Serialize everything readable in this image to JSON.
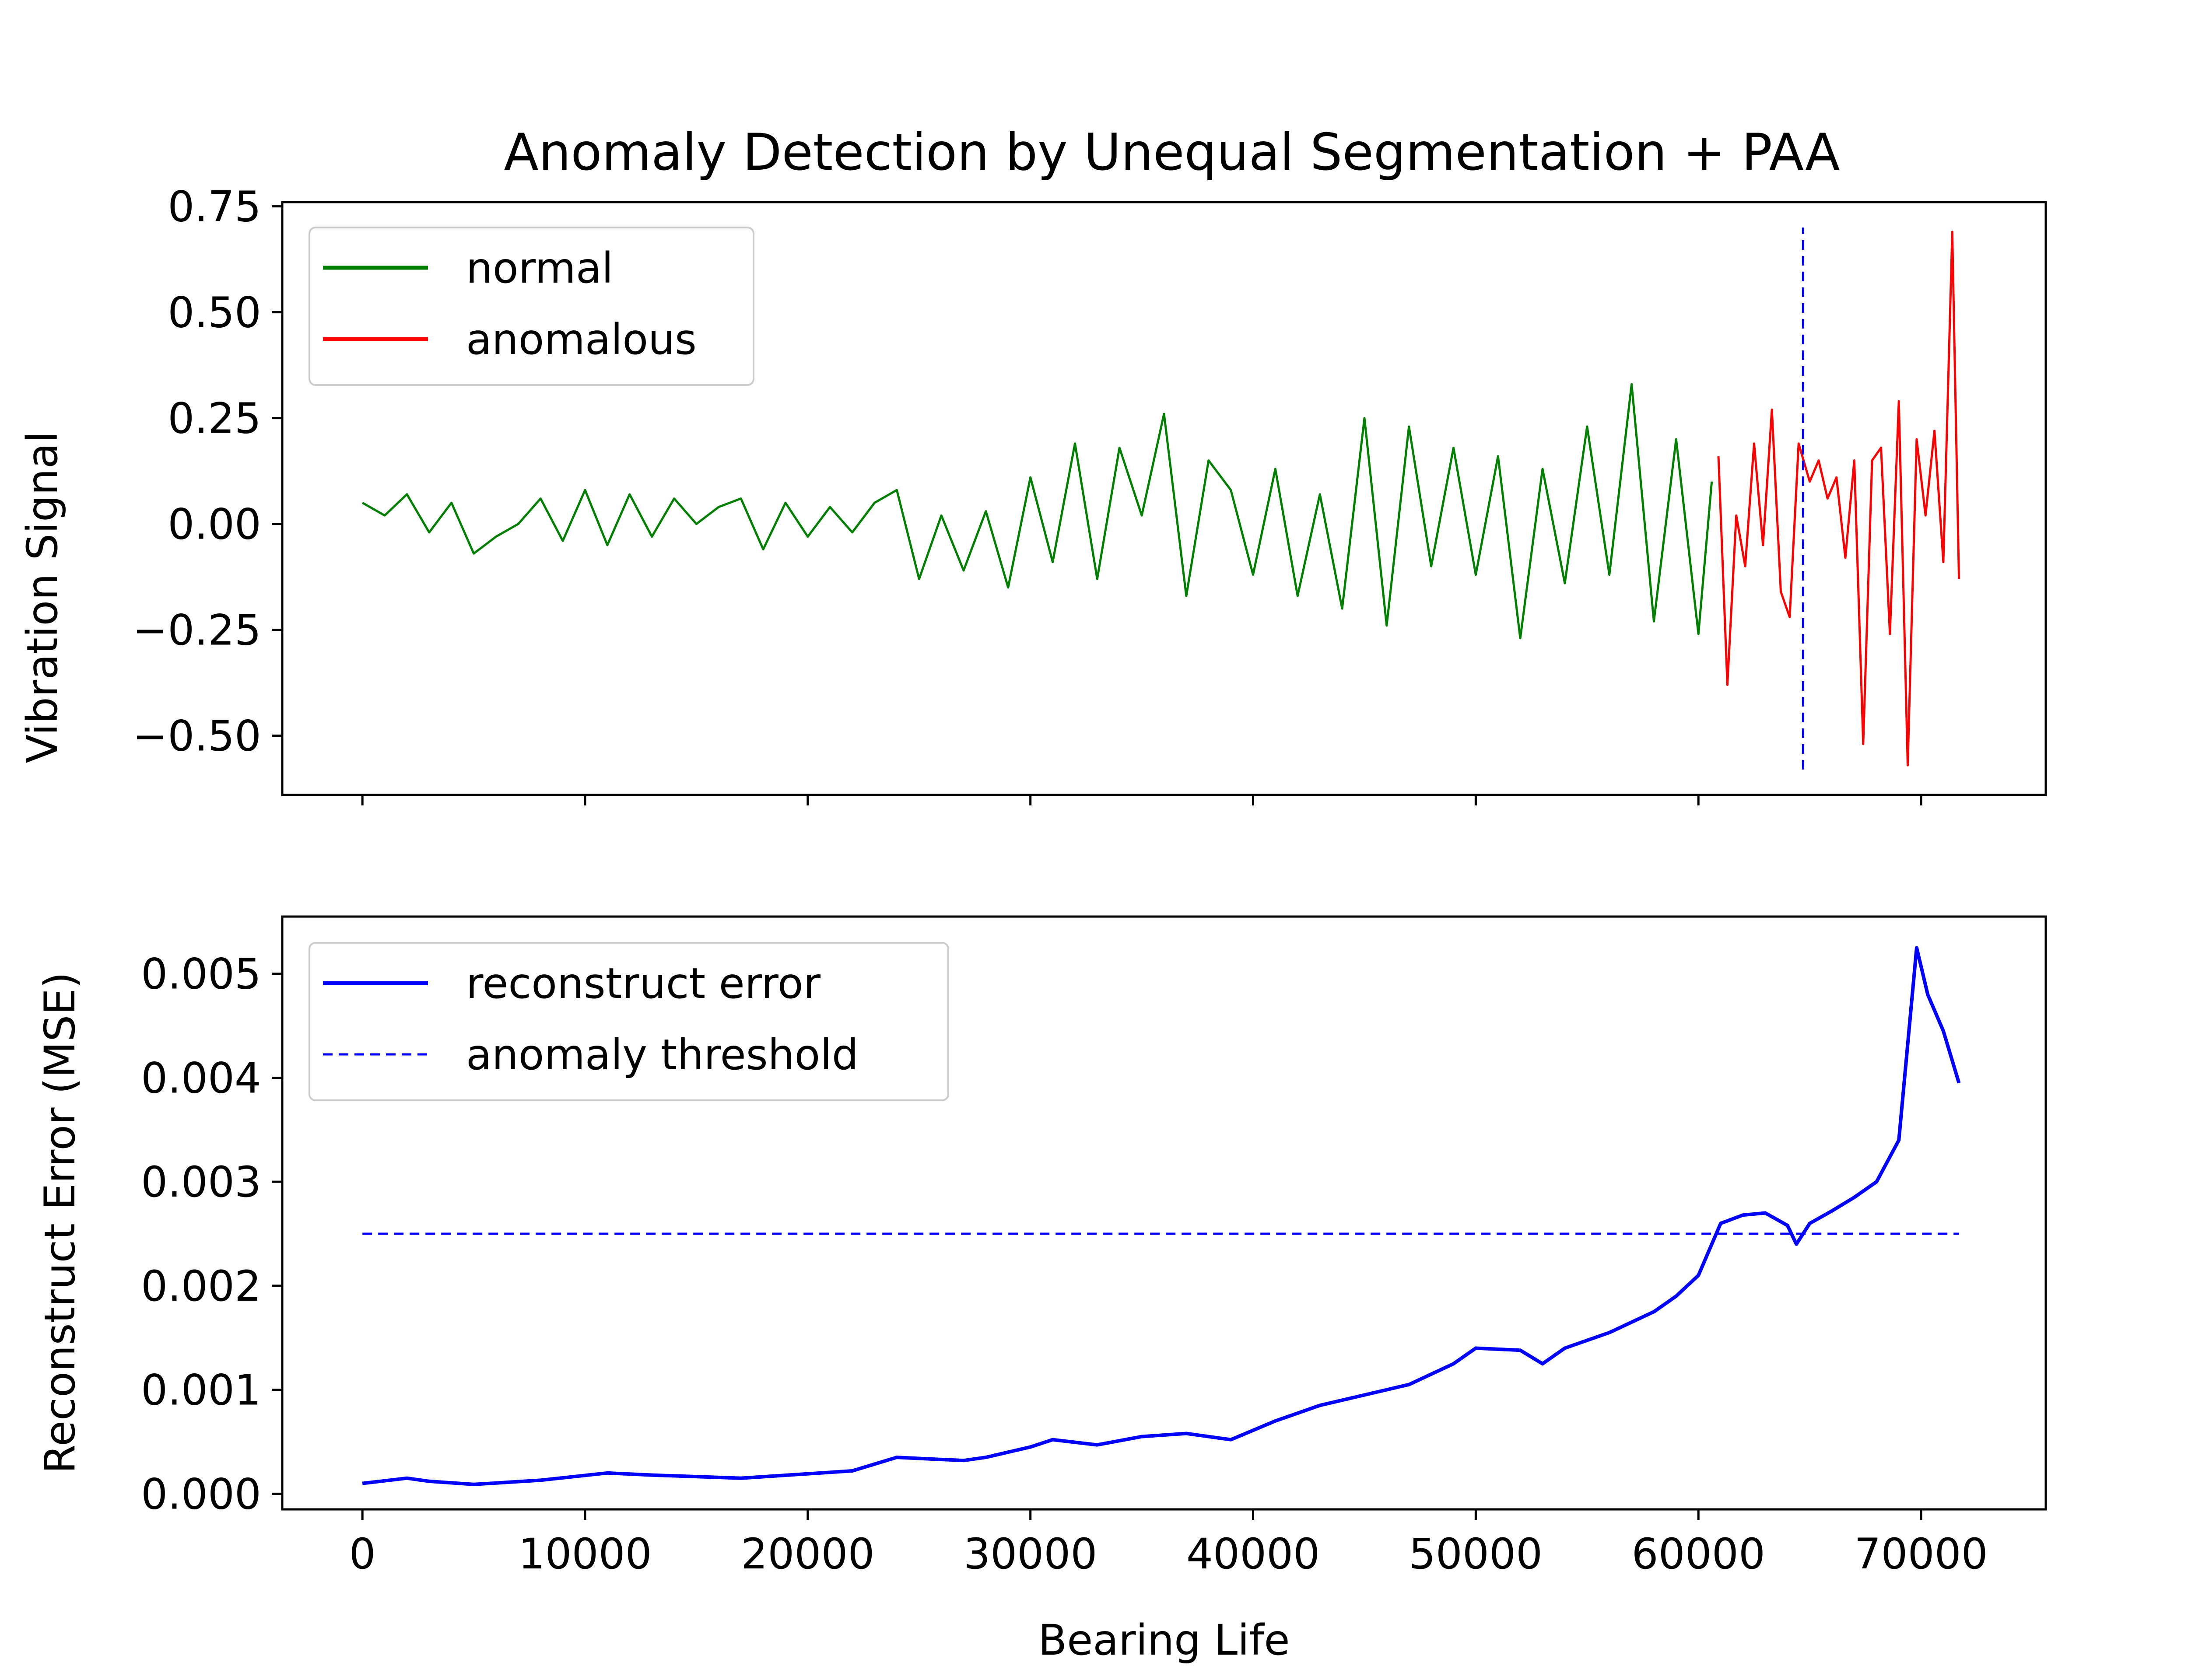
{
  "chart_data": [
    {
      "type": "line",
      "title": "Anomaly Detection by Unequal Segmentation + PAA",
      "xlabel": "",
      "ylabel": "Vibration Signal",
      "xlim": [
        -3600,
        75600
      ],
      "ylim": [
        -0.64,
        0.76
      ],
      "xticks": [
        0,
        10000,
        20000,
        30000,
        40000,
        50000,
        60000,
        70000
      ],
      "yticks": [
        -0.5,
        -0.25,
        0.0,
        0.25,
        0.5,
        0.75
      ],
      "ytick_labels": [
        "−0.50",
        "−0.25",
        "0.00",
        "0.25",
        "0.50",
        "0.75"
      ],
      "legend": "top-left",
      "grid": false,
      "vline": {
        "x": 64700,
        "y_range": [
          -0.58,
          0.7
        ],
        "style": "dashed",
        "color": "#0000ff"
      },
      "series": [
        {
          "name": "normal",
          "color": "#008000",
          "x": [
            0,
            1000,
            2000,
            3000,
            4000,
            5000,
            6000,
            7000,
            8000,
            9000,
            10000,
            11000,
            12000,
            13000,
            14000,
            15000,
            16000,
            17000,
            18000,
            19000,
            20000,
            21000,
            22000,
            23000,
            24000,
            25000,
            26000,
            27000,
            28000,
            29000,
            30000,
            31000,
            32000,
            33000,
            34000,
            35000,
            36000,
            37000,
            38000,
            39000,
            40000,
            41000,
            42000,
            43000,
            44000,
            45000,
            46000,
            47000,
            48000,
            49000,
            50000,
            51000,
            52000,
            53000,
            54000,
            55000,
            56000,
            57000,
            58000,
            59000,
            60000,
            60600
          ],
          "y": [
            0.05,
            0.02,
            0.07,
            -0.02,
            0.05,
            -0.07,
            -0.03,
            0.0,
            0.06,
            -0.04,
            0.08,
            -0.05,
            0.07,
            -0.03,
            0.06,
            0.0,
            0.04,
            0.06,
            -0.06,
            0.05,
            -0.03,
            0.04,
            -0.02,
            0.05,
            0.08,
            -0.13,
            0.02,
            -0.11,
            0.03,
            -0.15,
            0.11,
            -0.09,
            0.19,
            -0.13,
            0.18,
            0.02,
            0.26,
            -0.17,
            0.15,
            0.08,
            -0.12,
            0.13,
            -0.17,
            0.07,
            -0.2,
            0.25,
            -0.24,
            0.23,
            -0.1,
            0.18,
            -0.12,
            0.16,
            -0.27,
            0.13,
            -0.14,
            0.23,
            -0.12,
            0.33,
            -0.23,
            0.2,
            -0.26,
            0.1
          ]
        },
        {
          "name": "anomalous",
          "color": "#ff0000",
          "x": [
            60900,
            61300,
            61700,
            62100,
            62500,
            62900,
            63300,
            63700,
            64100,
            64500,
            65000,
            65400,
            65800,
            66200,
            66600,
            67000,
            67400,
            67800,
            68200,
            68600,
            69000,
            69400,
            69800,
            70200,
            70600,
            71000,
            71400,
            71700
          ],
          "y": [
            0.16,
            -0.38,
            0.02,
            -0.1,
            0.19,
            -0.05,
            0.27,
            -0.16,
            -0.22,
            0.19,
            0.1,
            0.15,
            0.06,
            0.11,
            -0.08,
            0.15,
            -0.52,
            0.15,
            0.18,
            -0.26,
            0.29,
            -0.57,
            0.2,
            0.02,
            0.22,
            -0.09,
            0.69,
            -0.13
          ]
        }
      ]
    },
    {
      "type": "line",
      "title": "",
      "xlabel": "Bearing Life",
      "ylabel": "Reconstruct Error (MSE)",
      "xlim": [
        -3600,
        75600
      ],
      "ylim": [
        -0.00015,
        0.00555
      ],
      "xticks": [
        0,
        10000,
        20000,
        30000,
        40000,
        50000,
        60000,
        70000
      ],
      "xtick_labels": [
        "0",
        "10000",
        "20000",
        "30000",
        "40000",
        "50000",
        "60000",
        "70000"
      ],
      "yticks": [
        0.0,
        0.001,
        0.002,
        0.003,
        0.004,
        0.005
      ],
      "ytick_labels": [
        "0.000",
        "0.001",
        "0.002",
        "0.003",
        "0.004",
        "0.005"
      ],
      "legend": "top-left",
      "grid": false,
      "series": [
        {
          "name": "reconstruct error",
          "color": "#0000ff",
          "style": "solid",
          "x": [
            0,
            2000,
            3000,
            5000,
            8000,
            11000,
            13000,
            17000,
            22000,
            24000,
            27000,
            28000,
            30000,
            31000,
            33000,
            35000,
            37000,
            39000,
            41000,
            43000,
            45000,
            47000,
            49000,
            50000,
            52000,
            53000,
            54000,
            56000,
            58000,
            59000,
            60000,
            61000,
            62000,
            63000,
            64000,
            64400,
            65000,
            66000,
            67000,
            68000,
            69000,
            69800,
            70300,
            71000,
            71700
          ],
          "y": [
            0.0001,
            0.00015,
            0.00012,
            9e-05,
            0.00013,
            0.0002,
            0.00018,
            0.00015,
            0.00022,
            0.00035,
            0.00032,
            0.00035,
            0.00045,
            0.00052,
            0.00047,
            0.00055,
            0.00058,
            0.00052,
            0.0007,
            0.00085,
            0.00095,
            0.00105,
            0.00125,
            0.0014,
            0.00138,
            0.00125,
            0.0014,
            0.00155,
            0.00175,
            0.0019,
            0.0021,
            0.0026,
            0.00268,
            0.0027,
            0.00258,
            0.0024,
            0.0026,
            0.00272,
            0.00285,
            0.003,
            0.0034,
            0.00525,
            0.0048,
            0.00445,
            0.00395
          ]
        },
        {
          "name": "anomaly threshold",
          "color": "#0000ff",
          "style": "dashed",
          "x": [
            0,
            71700
          ],
          "y": [
            0.0025,
            0.0025
          ]
        }
      ]
    }
  ]
}
